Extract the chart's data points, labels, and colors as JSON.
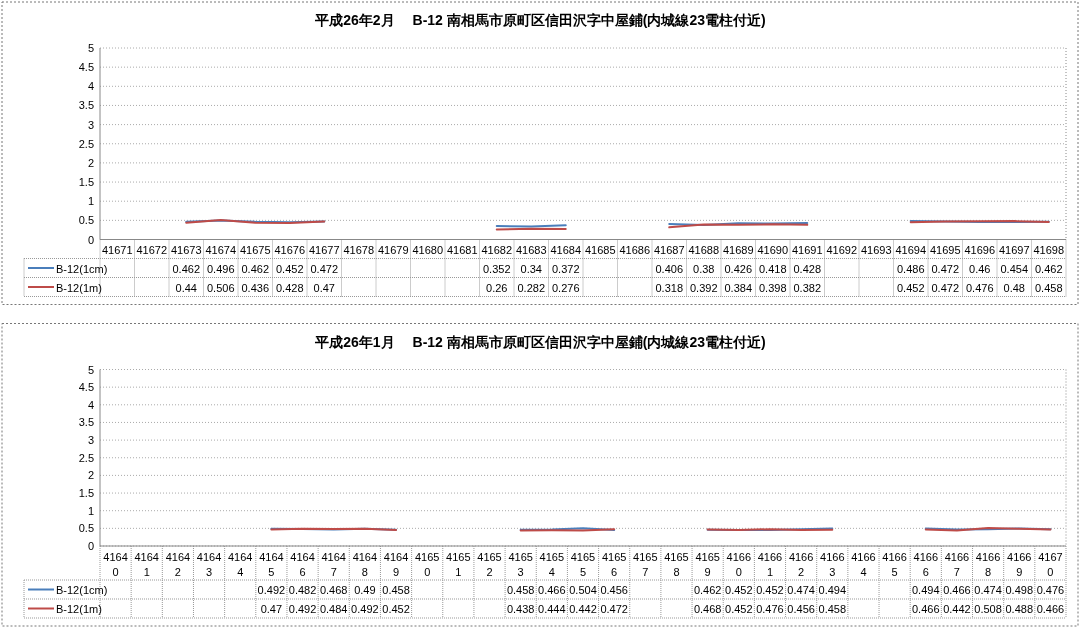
{
  "chart_data": [
    {
      "type": "line",
      "title": "平成26年2月　 B-12 南相馬市原町区信田沢字中屋鋪(内城線23電柱付近)",
      "categories": [
        "41671",
        "41672",
        "41673",
        "41674",
        "41675",
        "41676",
        "41677",
        "41678",
        "41679",
        "41680",
        "41681",
        "41682",
        "41683",
        "41684",
        "41685",
        "41686",
        "41687",
        "41688",
        "41689",
        "41690",
        "41691",
        "41692",
        "41693",
        "41694",
        "41695",
        "41696",
        "41697",
        "41698"
      ],
      "series": [
        {
          "name": "B-12(1cm)",
          "color": "#4a7ebb",
          "values": [
            null,
            null,
            0.462,
            0.496,
            0.462,
            0.452,
            0.472,
            null,
            null,
            null,
            null,
            0.352,
            0.34,
            0.372,
            null,
            null,
            0.406,
            0.38,
            0.426,
            0.418,
            0.428,
            null,
            null,
            0.486,
            0.472,
            0.46,
            0.454,
            0.462
          ]
        },
        {
          "name": "B-12(1m)",
          "color": "#be4b48",
          "values": [
            null,
            null,
            0.44,
            0.506,
            0.436,
            0.428,
            0.47,
            null,
            null,
            null,
            null,
            0.26,
            0.282,
            0.276,
            null,
            null,
            0.318,
            0.392,
            0.384,
            0.398,
            0.382,
            null,
            null,
            0.452,
            0.472,
            0.476,
            0.48,
            0.458
          ]
        }
      ],
      "ylim": [
        0,
        5
      ],
      "yticks": [
        0,
        0.5,
        1,
        1.5,
        2,
        2.5,
        3,
        3.5,
        4,
        4.5,
        5
      ],
      "grid": "y",
      "legend": "bottom left",
      "data_labels": true
    },
    {
      "type": "line",
      "title": "平成26年1月　 B-12 南相馬市原町区信田沢字中屋鋪(内城線23電柱付近)",
      "categories": [
        "41640",
        "41641",
        "41642",
        "41643",
        "41644",
        "41645",
        "41646",
        "41647",
        "41648",
        "41649",
        "41650",
        "41651",
        "41652",
        "41653",
        "41654",
        "41655",
        "41656",
        "41657",
        "41658",
        "41659",
        "41660",
        "41661",
        "41662",
        "41663",
        "41664",
        "41665",
        "41666",
        "41667",
        "41668",
        "41669",
        "41670"
      ],
      "series": [
        {
          "name": "B-12(1cm)",
          "color": "#4a7ebb",
          "values": [
            null,
            null,
            null,
            null,
            null,
            0.492,
            0.482,
            0.468,
            0.49,
            0.458,
            null,
            null,
            null,
            0.458,
            0.466,
            0.504,
            0.456,
            null,
            null,
            0.462,
            0.452,
            0.452,
            0.474,
            0.494,
            null,
            null,
            0.494,
            0.466,
            0.474,
            0.498,
            0.476
          ]
        },
        {
          "name": "B-12(1m)",
          "color": "#be4b48",
          "values": [
            null,
            null,
            null,
            null,
            null,
            0.47,
            0.492,
            0.484,
            0.492,
            0.452,
            null,
            null,
            null,
            0.438,
            0.444,
            0.442,
            0.472,
            null,
            null,
            0.468,
            0.452,
            0.476,
            0.456,
            0.458,
            null,
            null,
            0.466,
            0.442,
            0.508,
            0.488,
            0.466
          ]
        }
      ],
      "ylim": [
        0,
        5
      ],
      "yticks": [
        0,
        0.5,
        1,
        1.5,
        2,
        2.5,
        3,
        3.5,
        4,
        4.5,
        5
      ],
      "grid": "y",
      "legend": "bottom left",
      "data_labels": true
    }
  ]
}
